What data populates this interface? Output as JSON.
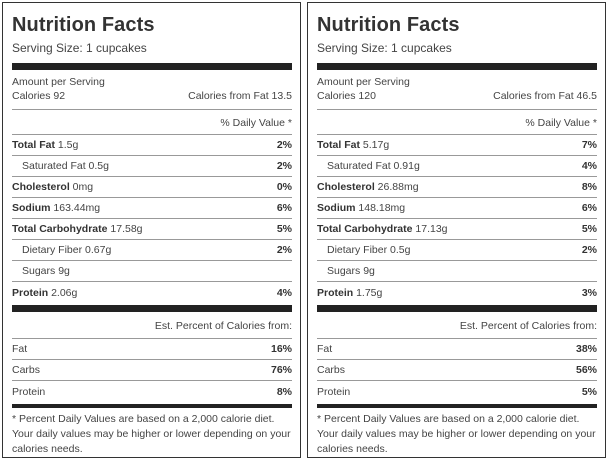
{
  "panels": [
    {
      "title": "Nutrition Facts",
      "serving_size": "Serving Size: 1 cupcakes",
      "amount_per_serving": "Amount per Serving",
      "calories": "Calories 92",
      "calories_from_fat": "Calories from Fat 13.5",
      "daily_value_header": "% Daily Value *",
      "nutrients": [
        {
          "name": "Total Fat",
          "amount": " 1.5g",
          "dv": "2%"
        },
        {
          "name": "Saturated Fat",
          "amount": " 0.5g",
          "dv": "2%"
        },
        {
          "name": "Cholesterol",
          "amount": " 0mg",
          "dv": "0%"
        },
        {
          "name": "Sodium",
          "amount": " 163.44mg",
          "dv": "6%"
        },
        {
          "name": "Total Carbohydrate",
          "amount": " 17.58g",
          "dv": "5%"
        },
        {
          "name": "Dietary Fiber",
          "amount": " 0.67g",
          "dv": "2%"
        },
        {
          "name": "Sugars",
          "amount": " 9g",
          "dv": ""
        },
        {
          "name": "Protein",
          "amount": " 2.06g",
          "dv": "4%"
        }
      ],
      "est_header": "Est. Percent of Calories from:",
      "calorie_sources": [
        {
          "name": "Fat",
          "pct": "16%"
        },
        {
          "name": "Carbs",
          "pct": "76%"
        },
        {
          "name": "Protein",
          "pct": "8%"
        }
      ],
      "footnote": "* Percent Daily Values are based on a 2,000 calorie diet. Your daily values may be higher or lower depending on your calories needs."
    },
    {
      "title": "Nutrition Facts",
      "serving_size": "Serving Size: 1 cupcakes",
      "amount_per_serving": "Amount per Serving",
      "calories": "Calories 120",
      "calories_from_fat": "Calories from Fat 46.5",
      "daily_value_header": "% Daily Value *",
      "nutrients": [
        {
          "name": "Total Fat",
          "amount": " 5.17g",
          "dv": "7%"
        },
        {
          "name": "Saturated Fat",
          "amount": " 0.91g",
          "dv": "4%"
        },
        {
          "name": "Cholesterol",
          "amount": " 26.88mg",
          "dv": "8%"
        },
        {
          "name": "Sodium",
          "amount": " 148.18mg",
          "dv": "6%"
        },
        {
          "name": "Total Carbohydrate",
          "amount": " 17.13g",
          "dv": "5%"
        },
        {
          "name": "Dietary Fiber",
          "amount": " 0.5g",
          "dv": "2%"
        },
        {
          "name": "Sugars",
          "amount": " 9g",
          "dv": ""
        },
        {
          "name": "Protein",
          "amount": " 1.75g",
          "dv": "3%"
        }
      ],
      "est_header": "Est. Percent of Calories from:",
      "calorie_sources": [
        {
          "name": "Fat",
          "pct": "38%"
        },
        {
          "name": "Carbs",
          "pct": "56%"
        },
        {
          "name": "Protein",
          "pct": "5%"
        }
      ],
      "footnote": "* Percent Daily Values are based on a 2,000 calorie diet. Your daily values may be higher or lower depending on your calories needs."
    }
  ]
}
